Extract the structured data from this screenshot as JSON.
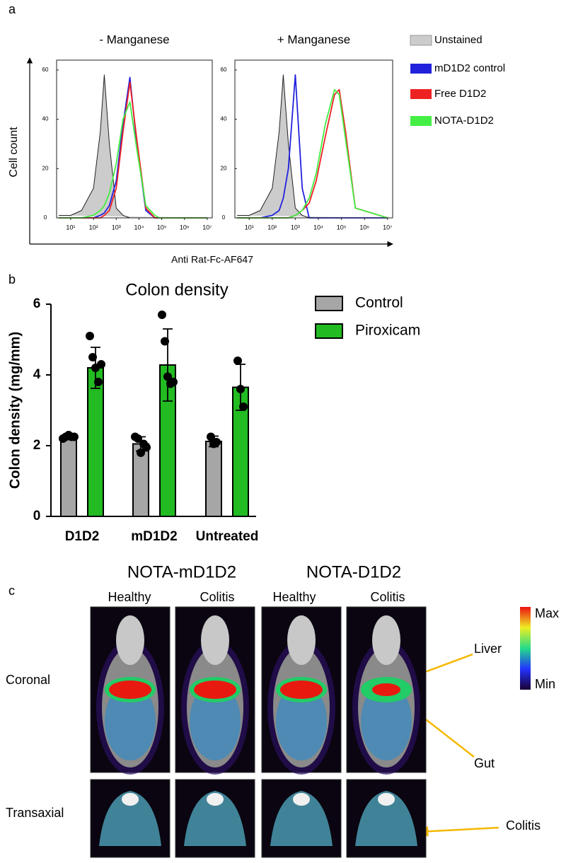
{
  "figure": {
    "panel_labels": [
      "a",
      "b",
      "c"
    ]
  },
  "chart_data": [
    {
      "type": "line",
      "title": "- Manganese",
      "x_label": "Anti Rat-Fc-AF647",
      "y_label": "Cell count",
      "x_scale": "log",
      "x": [
        3,
        10,
        30,
        100,
        200,
        300,
        500,
        1000,
        2000,
        4000,
        8000,
        20000,
        50000,
        80000,
        150000,
        400000,
        10000000
      ],
      "xlim": [
        2.4,
        16600000
      ],
      "ylim": [
        0,
        64
      ],
      "xticks": [
        {
          "value": 10,
          "label": "10¹"
        },
        {
          "value": 100,
          "label": "10²"
        },
        {
          "value": 1000,
          "label": "10³"
        },
        {
          "value": 10000,
          "label": "10⁴"
        },
        {
          "value": 100000,
          "label": "10⁵"
        },
        {
          "value": 1000000,
          "label": "10⁶"
        },
        {
          "value": 10000000,
          "label": "10⁷"
        }
      ],
      "yticks": [
        0,
        20,
        40,
        60
      ],
      "series": [
        {
          "name": "Unstained",
          "color": "#cccccc",
          "area": true,
          "values": [
            1,
            1,
            3,
            12,
            35,
            58,
            30,
            4,
            1,
            0,
            0,
            0,
            0,
            0,
            0,
            0,
            0
          ]
        },
        {
          "name": "mD1D2 control",
          "color": "#2222dd",
          "values": [
            0,
            0,
            0,
            0,
            1,
            2,
            5,
            15,
            38,
            57,
            30,
            3,
            0,
            0,
            0,
            0,
            0
          ]
        },
        {
          "name": "Free D1D2",
          "color": "#ee2222",
          "values": [
            0,
            0,
            0,
            0,
            0,
            1,
            3,
            12,
            35,
            55,
            32,
            4,
            0,
            0,
            0,
            0,
            0
          ]
        },
        {
          "name": "NOTA-D1D2",
          "color": "#44ee44",
          "values": [
            0,
            0,
            0,
            1,
            3,
            5,
            10,
            22,
            40,
            47,
            28,
            5,
            1,
            0,
            0,
            0,
            0
          ]
        }
      ]
    },
    {
      "type": "line",
      "title": "+ Manganese",
      "x_scale": "log",
      "legend": "right",
      "x": [
        3,
        10,
        30,
        100,
        200,
        300,
        500,
        1000,
        2000,
        4000,
        8000,
        20000,
        50000,
        80000,
        150000,
        400000,
        10000000
      ],
      "xlim": [
        2.4,
        16600000
      ],
      "ylim": [
        0,
        64
      ],
      "xticks": [
        {
          "value": 10,
          "label": "10¹"
        },
        {
          "value": 100,
          "label": "10²"
        },
        {
          "value": 1000,
          "label": "10³"
        },
        {
          "value": 10000,
          "label": "10⁴"
        },
        {
          "value": 100000,
          "label": "10⁵"
        },
        {
          "value": 1000000,
          "label": "10⁶"
        },
        {
          "value": 10000000,
          "label": "10⁷"
        }
      ],
      "yticks": [
        0,
        20,
        40,
        60
      ],
      "series": [
        {
          "name": "Unstained",
          "color": "#cccccc",
          "area": true,
          "values": [
            1,
            1,
            3,
            12,
            35,
            58,
            30,
            4,
            1,
            0,
            0,
            0,
            0,
            0,
            0,
            0,
            0
          ]
        },
        {
          "name": "mD1D2 control",
          "color": "#2222dd",
          "values": [
            0,
            0,
            0,
            1,
            3,
            8,
            20,
            58,
            12,
            0,
            0,
            0,
            0,
            0,
            0,
            0,
            0
          ]
        },
        {
          "name": "Free D1D2",
          "color": "#ee2222",
          "values": [
            0,
            0,
            0,
            0,
            0,
            0,
            0,
            1,
            3,
            6,
            15,
            33,
            50,
            52,
            35,
            4,
            0
          ]
        },
        {
          "name": "NOTA-D1D2",
          "color": "#44ee44",
          "values": [
            0,
            0,
            0,
            0,
            0,
            0,
            0,
            1,
            3,
            8,
            18,
            38,
            52,
            50,
            32,
            4,
            0
          ]
        }
      ]
    },
    {
      "type": "bar",
      "title": "Colon density",
      "y_label": "Colon density (mg/mm)",
      "categories": [
        "D1D2",
        "mD1D2",
        "Untreated"
      ],
      "ylim": [
        0,
        6
      ],
      "yticks": [
        0,
        2,
        4,
        6
      ],
      "legend": "right",
      "series": [
        {
          "name": "Control",
          "color": "#a6a6a6",
          "values": [
            2.25,
            2.05,
            2.12
          ],
          "errors": [
            0.06,
            0.2,
            0.15
          ],
          "points": [
            [
              2.2,
              2.25,
              2.3,
              2.25,
              2.25
            ],
            [
              2.25,
              2.2,
              1.8,
              2.05,
              1.95
            ],
            [
              2.25,
              2.05,
              2.1
            ]
          ]
        },
        {
          "name": "Piroxicam",
          "color": "#22bb22",
          "values": [
            4.2,
            4.28,
            3.65
          ],
          "errors": [
            0.58,
            1.02,
            0.65
          ],
          "points": [
            [
              5.1,
              4.5,
              4.2,
              3.8,
              4.3
            ],
            [
              5.7,
              4.95,
              3.95,
              3.75,
              3.8
            ],
            [
              4.4,
              3.6,
              3.1
            ]
          ]
        }
      ]
    }
  ],
  "imaging": {
    "groups": [
      "NOTA-mD1D2",
      "NOTA-D1D2"
    ],
    "columns": [
      "Healthy",
      "Colitis",
      "Healthy",
      "Colitis"
    ],
    "rows": [
      "Coronal",
      "Transaxial"
    ],
    "scale": [
      "Max",
      "Min"
    ],
    "annotations": [
      "Liver",
      "Gut",
      "Colitis"
    ]
  }
}
